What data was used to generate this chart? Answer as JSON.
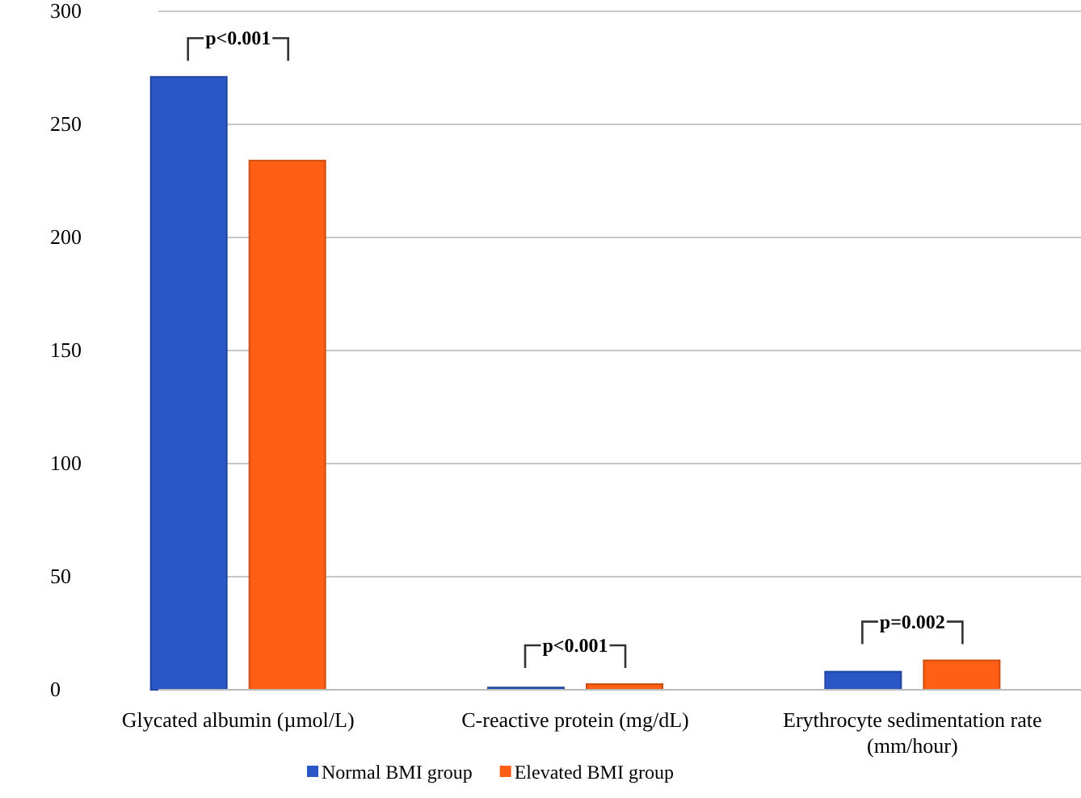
{
  "chart_data": {
    "type": "bar",
    "categories": [
      "Glycated albumin (µmol/L)",
      "C-reactive protein (mg/dL)",
      "Erythrocyte sedimentation rate (mm/hour)"
    ],
    "series": [
      {
        "name": "Normal BMI group",
        "color": "#2a56c6",
        "values": [
          271,
          1,
          8
        ]
      },
      {
        "name": "Elevated BMI group",
        "color": "#ff5f15",
        "values": [
          234,
          2.5,
          13
        ]
      }
    ],
    "ylim": [
      0,
      300
    ],
    "yticks": [
      0,
      50,
      100,
      150,
      200,
      250,
      300
    ],
    "grid": "y",
    "legend": "bottom",
    "annotations": [
      "p<0.001",
      "p<0.001",
      "p=0.002"
    ]
  }
}
